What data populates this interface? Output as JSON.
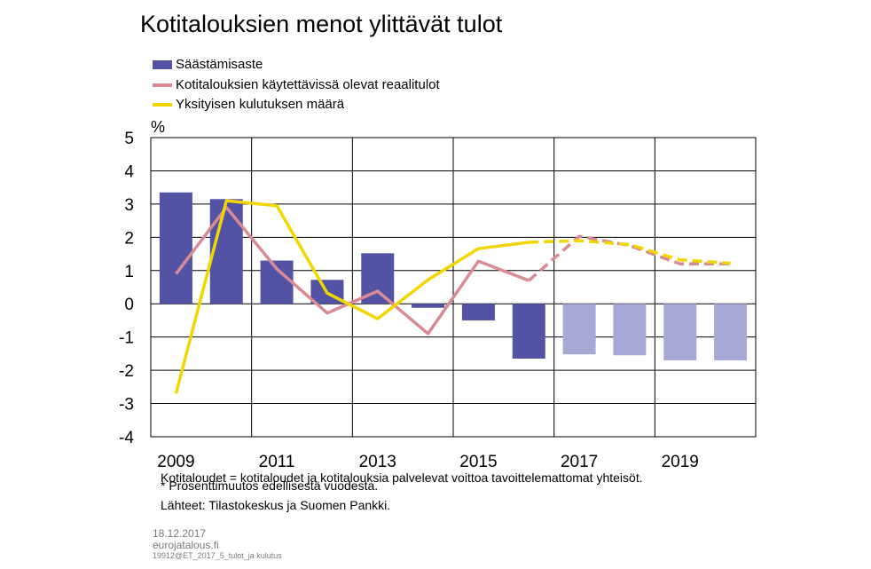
{
  "title": "Kotitalouksien menot ylittävät tulot",
  "unit_label": "%",
  "colors": {
    "bar_actual": "#5253a4",
    "bar_forecast": "#a6a8d6",
    "income_line": "#d98a94",
    "consumption_line": "#f2d600",
    "grid": "#000000"
  },
  "chart_data": {
    "type": "bar+line",
    "title": "Kotitalouksien menot ylittävät tulot",
    "ylabel": "%",
    "ylim": [
      -4,
      5
    ],
    "y_ticks": [
      5,
      4,
      3,
      2,
      1,
      0,
      -1,
      -2,
      -3,
      -4
    ],
    "x": [
      2009,
      2010,
      2011,
      2012,
      2013,
      2014,
      2015,
      2016,
      2017,
      2018,
      2019,
      2020
    ],
    "x_tick_labels": [
      "2009",
      "2011",
      "2013",
      "2015",
      "2017",
      "2019"
    ],
    "forecast_from": 2017,
    "grid": true,
    "legend_position": "top-left",
    "series": [
      {
        "name": "Säästämisaste",
        "type": "bar",
        "values": [
          3.35,
          3.15,
          1.3,
          0.72,
          1.52,
          -0.12,
          -0.5,
          -1.65,
          -1.52,
          -1.55,
          -1.7,
          -1.7
        ]
      },
      {
        "name": "Kotitalouksien käytettävissä olevat reaalitulot",
        "type": "line",
        "values": [
          0.9,
          2.9,
          1.05,
          -0.28,
          0.38,
          -0.9,
          1.28,
          0.7,
          2.03,
          1.75,
          1.2,
          1.2
        ]
      },
      {
        "name": "Yksityisen kulutuksen määrä",
        "type": "line",
        "values": [
          -2.7,
          3.1,
          2.95,
          0.32,
          -0.45,
          0.72,
          1.66,
          1.85,
          1.9,
          1.78,
          1.32,
          1.22
        ]
      }
    ]
  },
  "notes": {
    "definition": "Kotitaloudet = kotitaloudet ja kotitalouksia palvelevat voittoa tavoittelemattomat yhteisöt.",
    "footnote": "* Prosenttimuutos edellisestä vuodesta.",
    "sources": "Lähteet: Tilastokeskus ja Suomen Pankki."
  },
  "footer": {
    "date": "18.12.2017",
    "site": "eurojatalous.fi",
    "code": "19912@ET_2017_5_tulot_ja kulutus"
  }
}
